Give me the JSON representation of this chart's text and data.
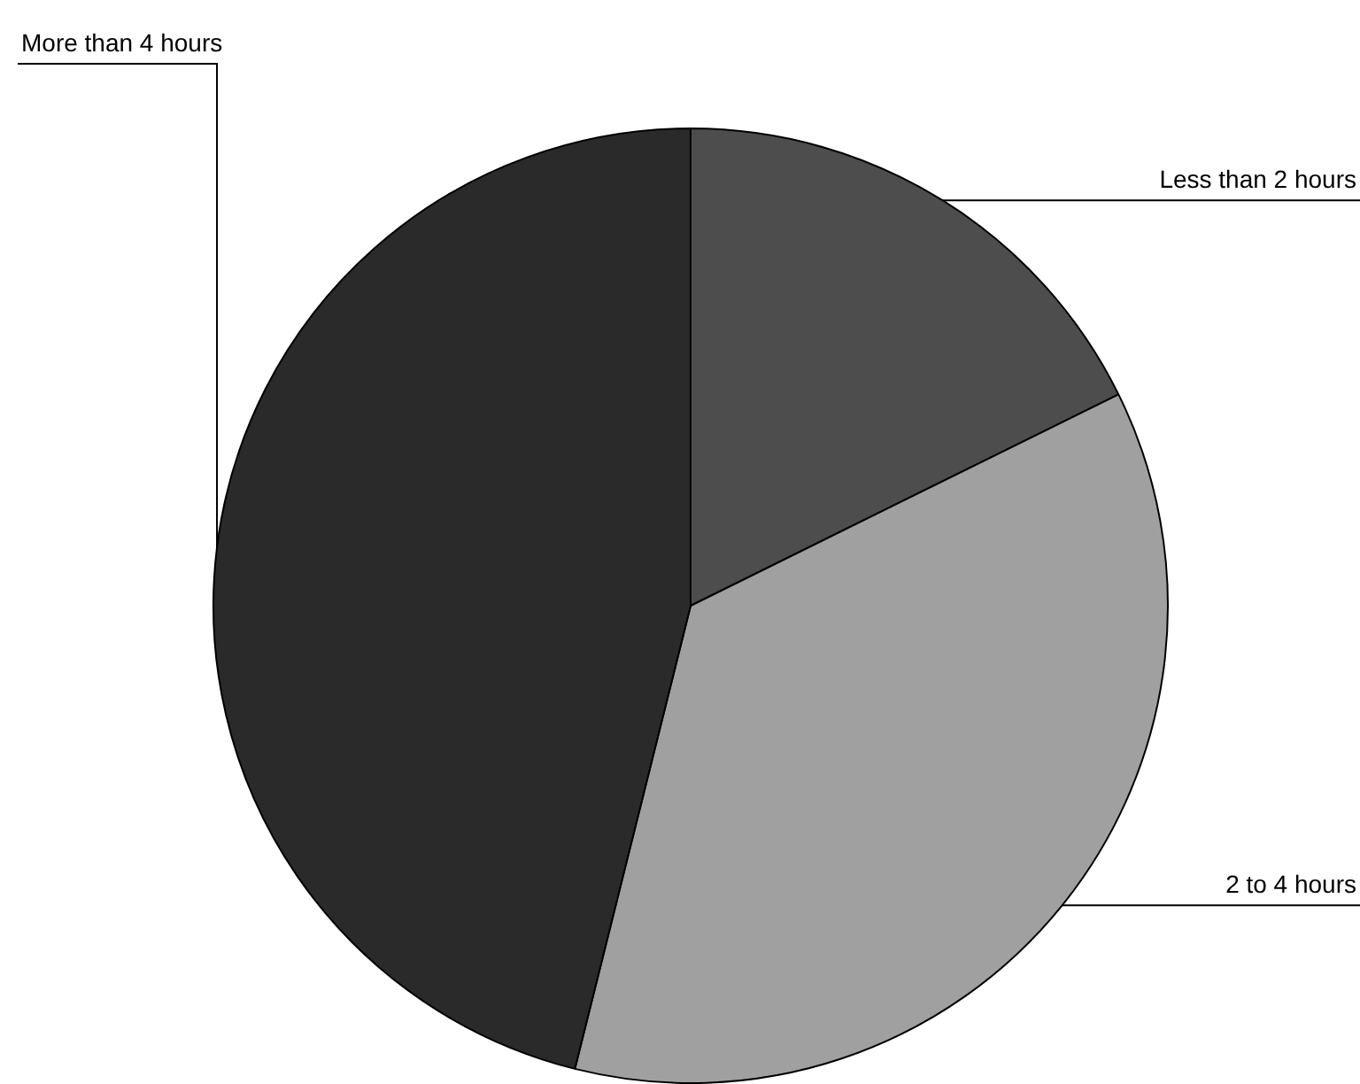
{
  "chart_data": {
    "type": "pie",
    "categories": [
      "Less than 2 hours",
      "2 to 4 hours",
      "More than 4 hours"
    ],
    "values": [
      17.7,
      36.2,
      46.1
    ],
    "colors": [
      "#4d4d4d",
      "#a0a0a0",
      "#2a2a2a"
    ],
    "legend": false
  }
}
